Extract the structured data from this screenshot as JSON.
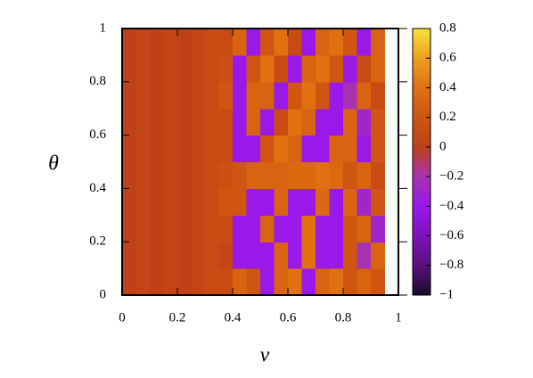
{
  "chart_data": {
    "type": "heatmap",
    "xlabel": "v",
    "ylabel": "θ",
    "x": [
      0,
      0.05,
      0.1,
      0.15,
      0.2,
      0.25,
      0.3,
      0.35,
      0.4,
      0.45,
      0.5,
      0.55,
      0.6,
      0.65,
      0.7,
      0.75,
      0.8,
      0.85,
      0.9,
      0.95
    ],
    "y": [
      0,
      0.1,
      0.2,
      0.3,
      0.4,
      0.5,
      0.6,
      0.7,
      0.8,
      0.9,
      1
    ],
    "z": [
      [
        0,
        0.05,
        0,
        0.05,
        0,
        0.05,
        0.1,
        0.1,
        0.3,
        0.2,
        -0.4,
        0.3,
        0.4,
        -0.4,
        0.3,
        0.4,
        0.2,
        0.3,
        0.2
      ],
      [
        0,
        0.05,
        0,
        0.05,
        0,
        0.05,
        0.1,
        0.05,
        -0.4,
        -0.4,
        -0.4,
        0.3,
        -0.4,
        0.4,
        -0.4,
        -0.4,
        0.2,
        -0.2,
        0.3
      ],
      [
        0,
        0.05,
        0,
        0.05,
        0,
        0.05,
        0.1,
        0.1,
        -0.4,
        -0.4,
        0.3,
        -0.4,
        -0.4,
        0.4,
        -0.4,
        -0.4,
        0.2,
        0.3,
        -0.3
      ],
      [
        0,
        0.05,
        0,
        0.05,
        0,
        0.05,
        0.1,
        0.2,
        0.2,
        -0.4,
        -0.4,
        0.3,
        -0.4,
        -0.4,
        0.35,
        -0.4,
        0.3,
        -0.3,
        0.2
      ],
      [
        0,
        0.05,
        0,
        0.05,
        0,
        0.05,
        0.1,
        0.15,
        0.2,
        0.3,
        0.3,
        0.3,
        0.35,
        0.35,
        0.4,
        0.35,
        0.2,
        0.3,
        0.1
      ],
      [
        0,
        0.05,
        0,
        0.05,
        0,
        0.05,
        0.1,
        0.1,
        -0.4,
        -0.4,
        0.2,
        0.4,
        0.3,
        -0.4,
        -0.4,
        0.3,
        0.3,
        -0.4,
        0.2
      ],
      [
        0,
        0.05,
        0,
        0.05,
        0,
        0.05,
        0.1,
        0.1,
        -0.4,
        0.3,
        -0.4,
        0.1,
        0.4,
        0.3,
        -0.4,
        -0.4,
        0.3,
        -0.3,
        0.2
      ],
      [
        0,
        0.05,
        0,
        0.05,
        0,
        0.05,
        0.1,
        0.2,
        -0.4,
        0.3,
        0.3,
        -0.4,
        0.2,
        0.4,
        0.2,
        -0.4,
        -0.2,
        0.3,
        0.1
      ],
      [
        0,
        0.05,
        0,
        0.05,
        0,
        0.05,
        0.1,
        0.15,
        -0.4,
        0.2,
        0.4,
        0.1,
        -0.4,
        0.3,
        0.4,
        0.2,
        -0.4,
        0.1,
        0.3
      ],
      [
        0,
        0.05,
        0,
        0.05,
        0,
        0.05,
        0.1,
        0.1,
        0.3,
        -0.4,
        0.2,
        0.4,
        0.1,
        -0.4,
        0.3,
        0.4,
        0.2,
        -0.4,
        0.3
      ]
    ],
    "xlim": [
      0,
      1
    ],
    "ylim": [
      0,
      1
    ],
    "xticks": [
      0,
      0.2,
      0.4,
      0.6,
      0.8,
      1
    ],
    "yticks": [
      0,
      0.2,
      0.4,
      0.6,
      0.8,
      1
    ],
    "zlim": [
      -1,
      0.8
    ],
    "zticks": [
      {
        "value": -1,
        "label": "−1"
      },
      {
        "value": -0.8,
        "label": "−0.8"
      },
      {
        "value": -0.6,
        "label": "−0.6"
      },
      {
        "value": -0.4,
        "label": "−0.4"
      },
      {
        "value": -0.2,
        "label": "−0.2"
      },
      0,
      0.2,
      0.4,
      0.6,
      0.8
    ],
    "colormap": [
      "#1a0a2a",
      "#5a1080",
      "#8010c0",
      "#9a18e8",
      "#a832b0",
      "#c04018",
      "#d05510",
      "#e07010",
      "#eea020",
      "#f8e040"
    ]
  }
}
